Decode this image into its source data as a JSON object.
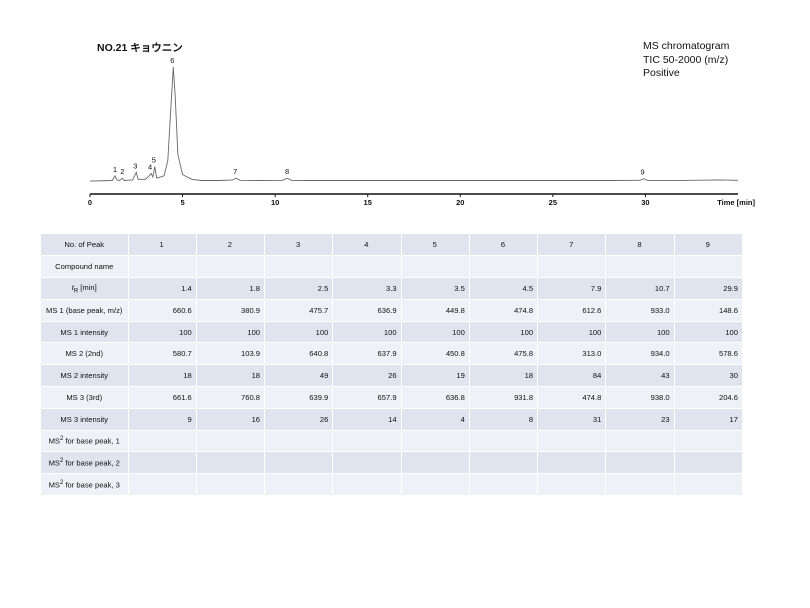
{
  "page": {
    "title": "NO.21 キョウニン",
    "info_lines": [
      "MS chromatogram",
      "TIC 50-2000 (m/z)",
      "Positive"
    ]
  },
  "chart_data": {
    "type": "line",
    "xlabel": "Time [min]",
    "xlim": [
      0,
      35
    ],
    "x_ticks": [
      0,
      5,
      10,
      15,
      20,
      25,
      30
    ],
    "ylim": [
      0,
      100
    ],
    "series": [
      {
        "points": [
          [
            0,
            2.5
          ],
          [
            1.2,
            3
          ],
          [
            1.35,
            7
          ],
          [
            1.45,
            3.5
          ],
          [
            1.6,
            3
          ],
          [
            1.75,
            5
          ],
          [
            1.85,
            3
          ],
          [
            2.3,
            3.5
          ],
          [
            2.5,
            10
          ],
          [
            2.6,
            4
          ],
          [
            3.0,
            4
          ],
          [
            3.2,
            7
          ],
          [
            3.3,
            9
          ],
          [
            3.4,
            6
          ],
          [
            3.5,
            15
          ],
          [
            3.6,
            5
          ],
          [
            4.0,
            7
          ],
          [
            4.2,
            20
          ],
          [
            4.35,
            60
          ],
          [
            4.5,
            100
          ],
          [
            4.6,
            75
          ],
          [
            4.75,
            25
          ],
          [
            5.0,
            8
          ],
          [
            5.5,
            4
          ],
          [
            6,
            3
          ],
          [
            7,
            3
          ],
          [
            7.7,
            3.5
          ],
          [
            7.9,
            5
          ],
          [
            8.1,
            3.2
          ],
          [
            9,
            3
          ],
          [
            10.4,
            3.2
          ],
          [
            10.65,
            5
          ],
          [
            10.9,
            3.1
          ],
          [
            12,
            3
          ],
          [
            15,
            3
          ],
          [
            20,
            3
          ],
          [
            25,
            3
          ],
          [
            28,
            3
          ],
          [
            29.7,
            3.2
          ],
          [
            29.9,
            4.5
          ],
          [
            30.1,
            3.1
          ],
          [
            32,
            3.1
          ],
          [
            34,
            3.5
          ],
          [
            35,
            3.2
          ]
        ]
      }
    ],
    "peak_labels": [
      {
        "label": "1",
        "x": 1.4,
        "y": 7
      },
      {
        "label": "2",
        "x": 1.8,
        "y": 5
      },
      {
        "label": "3",
        "x": 2.5,
        "y": 10
      },
      {
        "label": "4",
        "x": 3.3,
        "y": 9
      },
      {
        "label": "5",
        "x": 3.5,
        "y": 15
      },
      {
        "label": "6",
        "x": 4.5,
        "y": 100
      },
      {
        "label": "7",
        "x": 7.9,
        "y": 5
      },
      {
        "label": "8",
        "x": 10.7,
        "y": 5
      },
      {
        "label": "9",
        "x": 29.9,
        "y": 4.5
      }
    ]
  },
  "table": {
    "rows": [
      {
        "label": "No. of Peak",
        "cells": [
          "1",
          "2",
          "3",
          "4",
          "5",
          "6",
          "7",
          "8",
          "9"
        ]
      },
      {
        "label": "Compound name",
        "cells": [
          "",
          "",
          "",
          "",
          "",
          "",
          "",
          "",
          ""
        ]
      },
      {
        "label": "tR [min]",
        "cells": [
          "1.4",
          "1.8",
          "2.5",
          "3.3",
          "3.5",
          "4.5",
          "7.9",
          "10.7",
          "29.9"
        ]
      },
      {
        "label": "MS 1 (base peak, m/z)",
        "cells": [
          "660.6",
          "380.9",
          "475.7",
          "636.9",
          "449.8",
          "474.8",
          "612.6",
          "933.0",
          "148.6"
        ]
      },
      {
        "label": "MS 1 intensity",
        "cells": [
          "100",
          "100",
          "100",
          "100",
          "100",
          "100",
          "100",
          "100",
          "100"
        ]
      },
      {
        "label": "MS 2 (2nd)",
        "cells": [
          "580.7",
          "103.9",
          "640.8",
          "637.9",
          "450.8",
          "475.8",
          "313.0",
          "934.0",
          "578.6"
        ]
      },
      {
        "label": "MS 2 intensity",
        "cells": [
          "18",
          "18",
          "49",
          "26",
          "19",
          "18",
          "84",
          "43",
          "30"
        ]
      },
      {
        "label": "MS 3 (3rd)",
        "cells": [
          "661.6",
          "760.8",
          "639.9",
          "657.9",
          "636.8",
          "931.8",
          "474.8",
          "938.0",
          "204.6"
        ]
      },
      {
        "label": "MS 3 intensity",
        "cells": [
          "9",
          "16",
          "26",
          "14",
          "4",
          "8",
          "31",
          "23",
          "17"
        ]
      },
      {
        "label": "MS2 for base peak, 1",
        "cells": [
          "",
          "",
          "",
          "",
          "",
          "",
          "",
          "",
          ""
        ]
      },
      {
        "label": "MS2 for base peak, 2",
        "cells": [
          "",
          "",
          "",
          "",
          "",
          "",
          "",
          "",
          ""
        ]
      },
      {
        "label": "MS2 for base peak, 3",
        "cells": [
          "",
          "",
          "",
          "",
          "",
          "",
          "",
          "",
          ""
        ]
      }
    ]
  }
}
